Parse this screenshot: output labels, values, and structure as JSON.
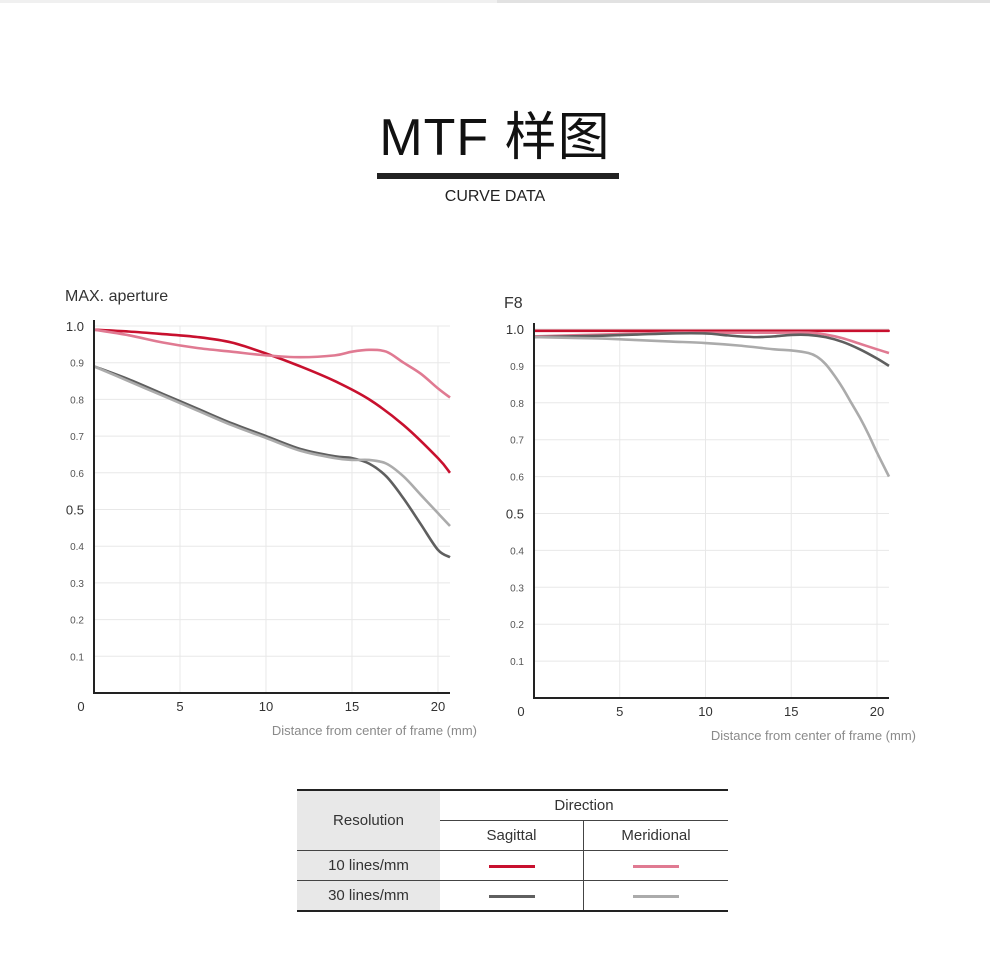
{
  "header": {
    "title": "MTF 样图",
    "subtitle": "CURVE DATA"
  },
  "colors": {
    "sagittal_10": "#c8102e",
    "meridional_10": "#e07a92",
    "sagittal_30": "#5f5f5f",
    "meridional_30": "#ababab"
  },
  "chart_data": [
    {
      "type": "line",
      "title": "MAX. aperture",
      "xlabel": "Distance from center of frame (mm)",
      "ylabel": "",
      "xlim": [
        0,
        20.7
      ],
      "ylim": [
        0,
        1.0
      ],
      "grid": true,
      "x_ticks": [
        "0",
        "5",
        "10",
        "15",
        "20"
      ],
      "y_ticks": [
        "1.0",
        "0.9",
        "0.8",
        "0.7",
        "0.6",
        "0.5",
        "0.4",
        "0.3",
        "0.2",
        "0.1"
      ],
      "series": [
        {
          "name": "10 lines/mm Sagittal",
          "color": "#c8102e",
          "x": [
            0,
            2,
            4,
            6,
            8,
            10,
            12,
            14,
            16,
            18,
            20,
            20.7
          ],
          "y": [
            0.99,
            0.985,
            0.978,
            0.97,
            0.955,
            0.925,
            0.89,
            0.85,
            0.8,
            0.73,
            0.64,
            0.6
          ]
        },
        {
          "name": "10 lines/mm Meridional",
          "color": "#e07a92",
          "x": [
            0,
            2,
            4,
            6,
            8,
            10,
            12,
            14,
            15,
            16,
            17,
            18,
            19,
            20,
            20.7
          ],
          "y": [
            0.99,
            0.975,
            0.955,
            0.94,
            0.93,
            0.92,
            0.915,
            0.92,
            0.93,
            0.935,
            0.93,
            0.9,
            0.87,
            0.83,
            0.805
          ]
        },
        {
          "name": "30 lines/mm Sagittal",
          "color": "#5f5f5f",
          "x": [
            0,
            2,
            4,
            6,
            8,
            10,
            12,
            14,
            15,
            16,
            17,
            18,
            19,
            20,
            20.7
          ],
          "y": [
            0.89,
            0.855,
            0.815,
            0.775,
            0.735,
            0.7,
            0.665,
            0.645,
            0.64,
            0.625,
            0.59,
            0.53,
            0.46,
            0.39,
            0.37
          ]
        },
        {
          "name": "30 lines/mm Meridional",
          "color": "#ababab",
          "x": [
            0,
            2,
            4,
            6,
            8,
            10,
            12,
            14,
            15,
            16,
            17,
            18,
            19,
            20,
            20.7
          ],
          "y": [
            0.89,
            0.85,
            0.81,
            0.77,
            0.73,
            0.695,
            0.66,
            0.64,
            0.635,
            0.635,
            0.625,
            0.59,
            0.54,
            0.49,
            0.455
          ]
        }
      ]
    },
    {
      "type": "line",
      "title": "F8",
      "xlabel": "Distance from center of frame (mm)",
      "ylabel": "",
      "xlim": [
        0,
        20.7
      ],
      "ylim": [
        0,
        1.0
      ],
      "grid": true,
      "x_ticks": [
        "0",
        "5",
        "10",
        "15",
        "20"
      ],
      "y_ticks": [
        "1.0",
        "0.9",
        "0.8",
        "0.7",
        "0.6",
        "0.5",
        "0.4",
        "0.3",
        "0.2",
        "0.1"
      ],
      "series": [
        {
          "name": "10 lines/mm Sagittal",
          "color": "#c8102e",
          "x": [
            0,
            5,
            10,
            15,
            20,
            20.7
          ],
          "y": [
            0.995,
            0.995,
            0.995,
            0.995,
            0.995,
            0.995
          ]
        },
        {
          "name": "10 lines/mm Meridional",
          "color": "#e07a92",
          "x": [
            0,
            4,
            8,
            10,
            12,
            14,
            16,
            17,
            18,
            19,
            20,
            20.7
          ],
          "y": [
            0.98,
            0.985,
            0.99,
            0.99,
            0.99,
            0.99,
            0.99,
            0.985,
            0.975,
            0.96,
            0.945,
            0.935
          ]
        },
        {
          "name": "30 lines/mm Sagittal",
          "color": "#5f5f5f",
          "x": [
            0,
            2,
            4,
            6,
            8,
            10,
            11,
            12,
            13,
            14,
            15,
            16,
            17,
            18,
            19,
            20,
            20.7
          ],
          "y": [
            0.978,
            0.98,
            0.982,
            0.985,
            0.988,
            0.988,
            0.984,
            0.98,
            0.978,
            0.98,
            0.984,
            0.984,
            0.978,
            0.965,
            0.945,
            0.92,
            0.9
          ]
        },
        {
          "name": "30 lines/mm Meridional",
          "color": "#ababab",
          "x": [
            0,
            2,
            4,
            6,
            8,
            10,
            12,
            14,
            15,
            16,
            16.5,
            17,
            17.5,
            18,
            18.5,
            19,
            19.5,
            20,
            20.7
          ],
          "y": [
            0.978,
            0.976,
            0.974,
            0.97,
            0.966,
            0.962,
            0.955,
            0.945,
            0.942,
            0.935,
            0.925,
            0.905,
            0.875,
            0.84,
            0.8,
            0.76,
            0.715,
            0.665,
            0.6
          ]
        }
      ]
    }
  ],
  "legend": {
    "resolution_header": "Resolution",
    "direction_header": "Direction",
    "sagittal_header": "Sagittal",
    "meridional_header": "Meridional",
    "rows": [
      {
        "label": "10 lines/mm",
        "sagittal_color": "#c8102e",
        "meridional_color": "#e07a92"
      },
      {
        "label": "30 lines/mm",
        "sagittal_color": "#5f5f5f",
        "meridional_color": "#ababab"
      }
    ]
  }
}
